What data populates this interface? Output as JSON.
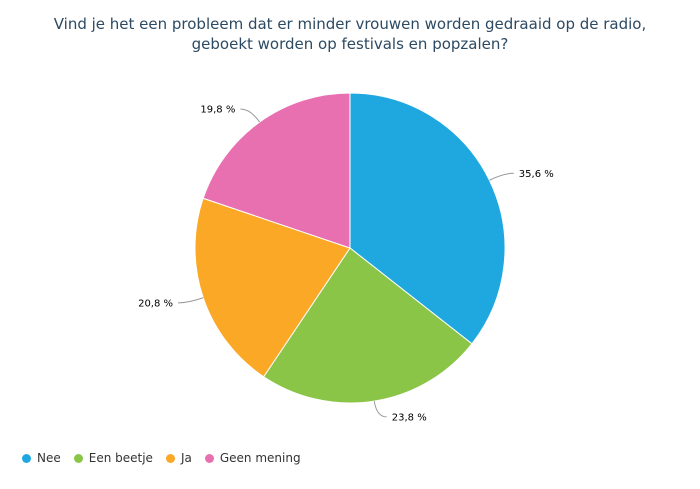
{
  "chart_data": {
    "type": "pie",
    "title": "Vind je het een probleem dat er minder vrouwen worden gedraaid op de radio, geboekt worden op festivals en popzalen?",
    "title_lines": [
      "Vind je het een probleem dat er minder vrouwen worden gedraaid op de radio,",
      "geboekt worden op festivals en popzalen?"
    ],
    "slices": [
      {
        "label": "Nee",
        "value": 35.6,
        "display": "35,6 %",
        "color": "#1fa8e0"
      },
      {
        "label": "Een beetje",
        "value": 23.8,
        "display": "23,8 %",
        "color": "#8bc547"
      },
      {
        "label": "Ja",
        "value": 20.8,
        "display": "20,8 %",
        "color": "#fba826"
      },
      {
        "label": "Geen mening",
        "value": 19.8,
        "display": "19,8 %",
        "color": "#e870b0"
      }
    ],
    "legend_position": "bottom-left"
  }
}
